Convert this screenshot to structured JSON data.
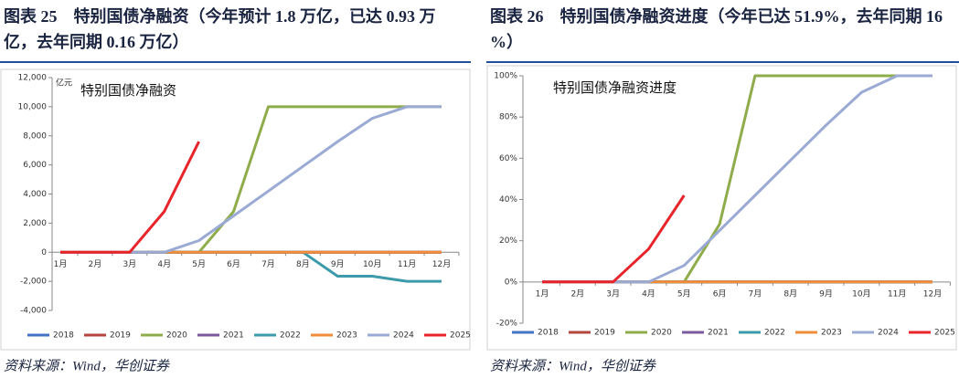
{
  "chart_data": [
    {
      "type": "line",
      "title": "图表 25　特别国债净融资（今年预计 1.8 万亿，已达 0.93 万亿，去年同期 0.16 万亿）",
      "subtitle": "特别国债净融资",
      "y_label": "亿元",
      "source": "资料来源：Wind，华创证券",
      "categories": [
        "1月",
        "2月",
        "3月",
        "4月",
        "5月",
        "6月",
        "7月",
        "8月",
        "9月",
        "10月",
        "11月",
        "12月"
      ],
      "ylim": [
        -4000,
        12000
      ],
      "yticks": [
        {
          "value": -4000,
          "label": "-4,000"
        },
        {
          "value": -2000,
          "label": "-2,000"
        },
        0,
        {
          "value": 2000,
          "label": "2,000"
        },
        {
          "value": 4000,
          "label": "4,000"
        },
        {
          "value": 6000,
          "label": "6,000"
        },
        {
          "value": 8000,
          "label": "8,000"
        },
        {
          "value": 10000,
          "label": "10,000"
        },
        {
          "value": 12000,
          "label": "12,000"
        }
      ],
      "grid": false,
      "legend": "bottom",
      "series": [
        {
          "name": "2018",
          "color": "#4472c4",
          "values": [
            0,
            0,
            0,
            0,
            0,
            0,
            0,
            0,
            0,
            0,
            0,
            0
          ]
        },
        {
          "name": "2019",
          "color": "#b5443c",
          "values": [
            0,
            0,
            0,
            0,
            0,
            0,
            0,
            0,
            0,
            0,
            0,
            0
          ]
        },
        {
          "name": "2020",
          "color": "#8fac4b",
          "values": [
            0,
            0,
            0,
            0,
            0,
            2800,
            10000,
            10000,
            10000,
            10000,
            10000,
            10000
          ]
        },
        {
          "name": "2021",
          "color": "#7a5a9c",
          "values": [
            0,
            0,
            0,
            0,
            0,
            0,
            0,
            0,
            0,
            0,
            0,
            0
          ]
        },
        {
          "name": "2022",
          "color": "#3d9aaa",
          "values": [
            0,
            0,
            0,
            0,
            0,
            0,
            0,
            0,
            -1650,
            -1650,
            -2000,
            -2000
          ]
        },
        {
          "name": "2023",
          "color": "#f08c3a",
          "values": [
            0,
            0,
            0,
            0,
            0,
            0,
            0,
            0,
            0,
            0,
            0,
            0
          ]
        },
        {
          "name": "2024",
          "color": "#9aaad4",
          "values": [
            0,
            0,
            0,
            0,
            800,
            2500,
            4200,
            5900,
            7600,
            9200,
            10000,
            10000
          ]
        },
        {
          "name": "2025",
          "color": "#e8242a",
          "values": [
            0,
            0,
            0,
            2800,
            7600,
            null,
            null,
            null,
            null,
            null,
            null,
            null
          ]
        }
      ]
    },
    {
      "type": "line",
      "title": "图表 26　特别国债净融资进度（今年已达 51.9%，去年同期 16%）",
      "subtitle": "特别国债净融资进度",
      "source": "资料来源：Wind，华创证券",
      "categories": [
        "1月",
        "2月",
        "3月",
        "4月",
        "5月",
        "6月",
        "7月",
        "8月",
        "9月",
        "10月",
        "11月",
        "12月"
      ],
      "ylim": [
        -20,
        100
      ],
      "yticks": [
        {
          "value": -20,
          "label": "-20%"
        },
        {
          "value": 0,
          "label": "0%"
        },
        {
          "value": 20,
          "label": "20%"
        },
        {
          "value": 40,
          "label": "40%"
        },
        {
          "value": 60,
          "label": "60%"
        },
        {
          "value": 80,
          "label": "80%"
        },
        {
          "value": 100,
          "label": "100%"
        }
      ],
      "grid": false,
      "legend": "bottom",
      "series": [
        {
          "name": "2018",
          "color": "#4472c4",
          "values": [
            0,
            0,
            0,
            0,
            0,
            0,
            0,
            0,
            0,
            0,
            0,
            0
          ]
        },
        {
          "name": "2019",
          "color": "#b5443c",
          "values": [
            0,
            0,
            0,
            0,
            0,
            0,
            0,
            0,
            0,
            0,
            0,
            0
          ]
        },
        {
          "name": "2020",
          "color": "#8fac4b",
          "values": [
            0,
            0,
            0,
            0,
            0,
            28,
            100,
            100,
            100,
            100,
            100,
            100
          ]
        },
        {
          "name": "2021",
          "color": "#7a5a9c",
          "values": [
            0,
            0,
            0,
            0,
            0,
            0,
            0,
            0,
            0,
            0,
            0,
            0
          ]
        },
        {
          "name": "2022",
          "color": "#3d9aaa",
          "values": [
            0,
            0,
            0,
            0,
            0,
            0,
            0,
            0,
            0,
            0,
            0,
            0
          ]
        },
        {
          "name": "2023",
          "color": "#f08c3a",
          "values": [
            0,
            0,
            0,
            0,
            0,
            0,
            0,
            0,
            0,
            0,
            0,
            0
          ]
        },
        {
          "name": "2024",
          "color": "#9aaad4",
          "values": [
            0,
            0,
            0,
            0,
            8,
            25,
            42,
            59,
            76,
            92,
            100,
            100
          ]
        },
        {
          "name": "2025",
          "color": "#e8242a",
          "values": [
            0,
            0,
            0,
            16,
            42,
            null,
            null,
            null,
            null,
            null,
            null,
            null
          ]
        }
      ]
    }
  ]
}
